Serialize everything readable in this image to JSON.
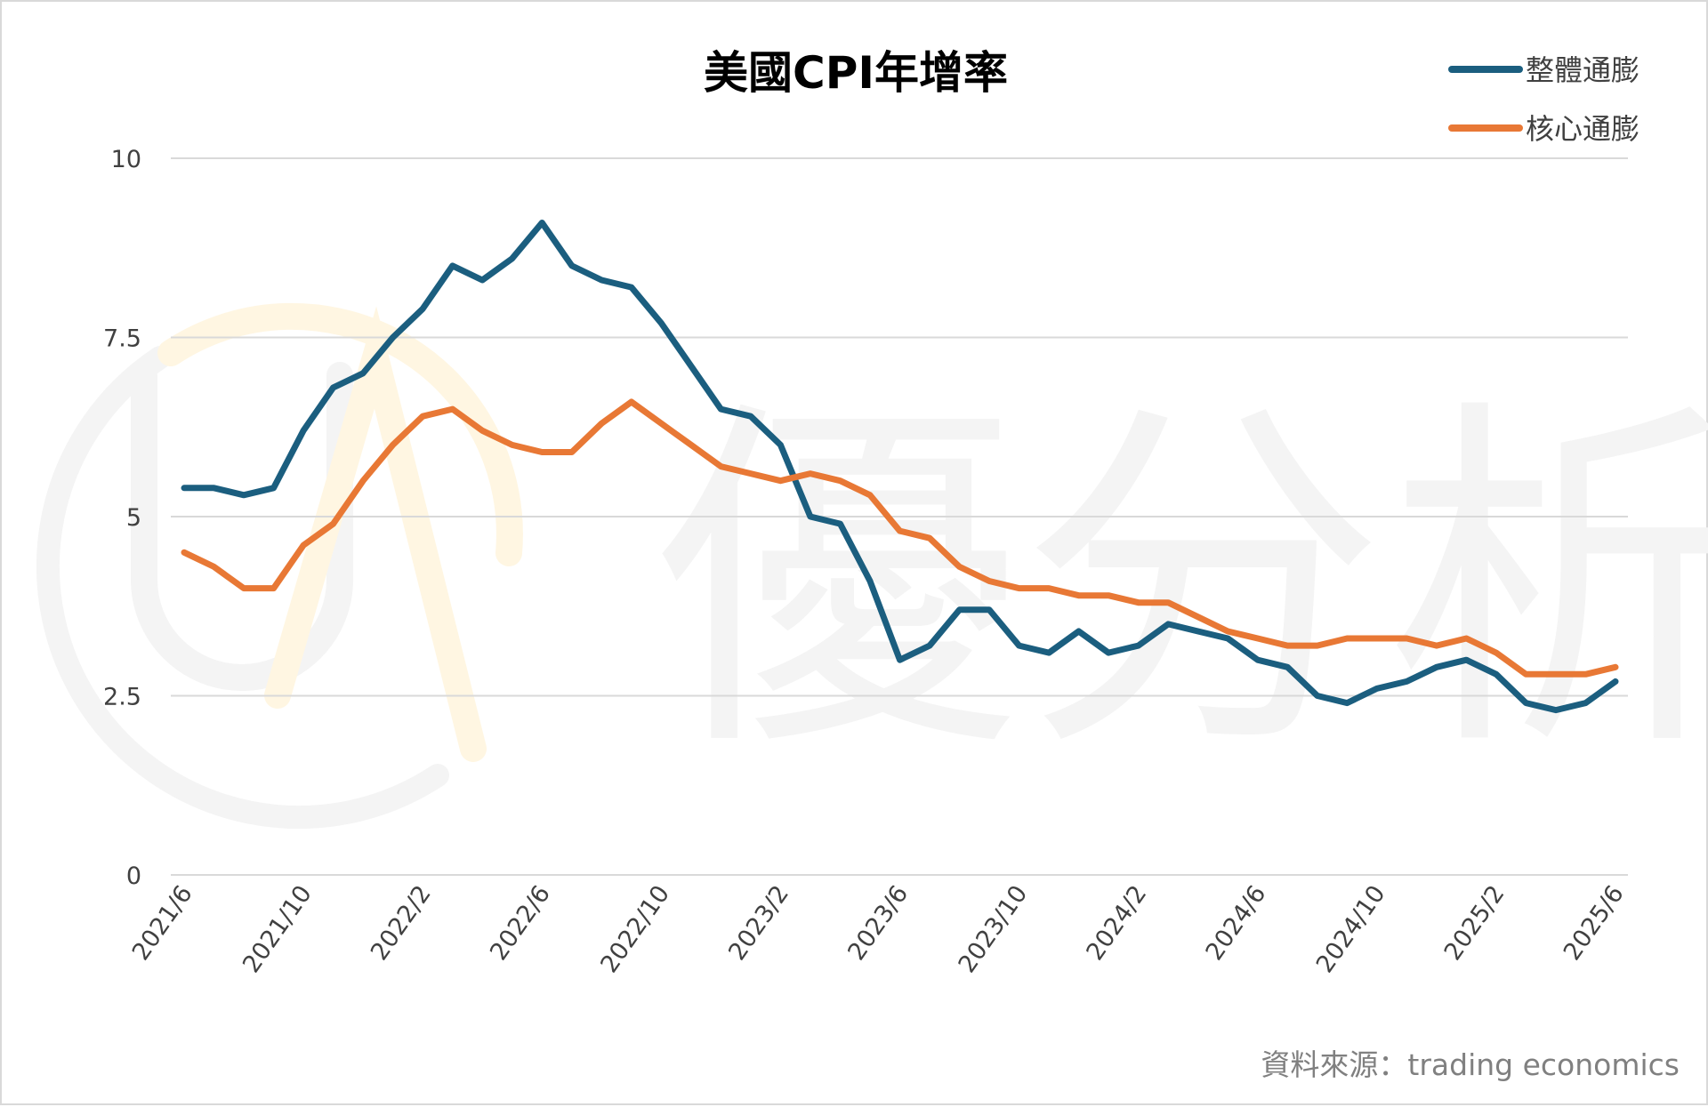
{
  "watermark": {
    "text": "優分析",
    "logo_name": "UA logo watermark"
  },
  "chart_data": {
    "type": "line",
    "title": "美國CPI年增率",
    "xlabel": "",
    "ylabel": "",
    "ylim": [
      0,
      10
    ],
    "yticks": [
      0,
      2.5,
      5,
      7.5,
      10
    ],
    "ytick_labels": [
      "0",
      "2.5",
      "5",
      "7.5",
      "10"
    ],
    "x": [
      "2021/6",
      "2021/7",
      "2021/8",
      "2021/9",
      "2021/10",
      "2021/11",
      "2021/12",
      "2022/1",
      "2022/2",
      "2022/3",
      "2022/4",
      "2022/5",
      "2022/6",
      "2022/7",
      "2022/8",
      "2022/9",
      "2022/10",
      "2022/11",
      "2022/12",
      "2023/1",
      "2023/2",
      "2023/3",
      "2023/4",
      "2023/5",
      "2023/6",
      "2023/7",
      "2023/8",
      "2023/9",
      "2023/10",
      "2023/11",
      "2023/12",
      "2024/1",
      "2024/2",
      "2024/3",
      "2024/4",
      "2024/5",
      "2024/6",
      "2024/7",
      "2024/8",
      "2024/9",
      "2024/10",
      "2024/11",
      "2024/12",
      "2025/1",
      "2025/2",
      "2025/3",
      "2025/4",
      "2025/5",
      "2025/6"
    ],
    "xtick_labels": [
      "2021/6",
      "2021/10",
      "2022/2",
      "2022/6",
      "2022/10",
      "2023/2",
      "2023/6",
      "2023/10",
      "2024/2",
      "2024/6",
      "2024/10",
      "2025/2",
      "2025/6"
    ],
    "grid": true,
    "legend_position": "top-right",
    "series": [
      {
        "name": "整體通膨",
        "color": "#1b5e7f",
        "values": [
          5.4,
          5.4,
          5.3,
          5.4,
          6.2,
          6.8,
          7.0,
          7.5,
          7.9,
          8.5,
          8.3,
          8.6,
          9.1,
          8.5,
          8.3,
          8.2,
          7.7,
          7.1,
          6.5,
          6.4,
          6.0,
          5.0,
          4.9,
          4.1,
          3.0,
          3.2,
          3.7,
          3.7,
          3.2,
          3.1,
          3.4,
          3.1,
          3.2,
          3.5,
          3.4,
          3.3,
          3.0,
          2.9,
          2.5,
          2.4,
          2.6,
          2.7,
          2.9,
          3.0,
          2.8,
          2.4,
          2.3,
          2.4,
          2.7
        ]
      },
      {
        "name": "核心通膨",
        "color": "#e87835",
        "values": [
          4.5,
          4.3,
          4.0,
          4.0,
          4.6,
          4.9,
          5.5,
          6.0,
          6.4,
          6.5,
          6.2,
          6.0,
          5.9,
          5.9,
          6.3,
          6.6,
          6.3,
          6.0,
          5.7,
          5.6,
          5.5,
          5.6,
          5.5,
          5.3,
          4.8,
          4.7,
          4.3,
          4.1,
          4.0,
          4.0,
          3.9,
          3.9,
          3.8,
          3.8,
          3.6,
          3.4,
          3.3,
          3.2,
          3.2,
          3.3,
          3.3,
          3.3,
          3.2,
          3.3,
          3.1,
          2.8,
          2.8,
          2.8,
          2.9
        ]
      }
    ],
    "source_note": "資料來源：trading economics"
  }
}
